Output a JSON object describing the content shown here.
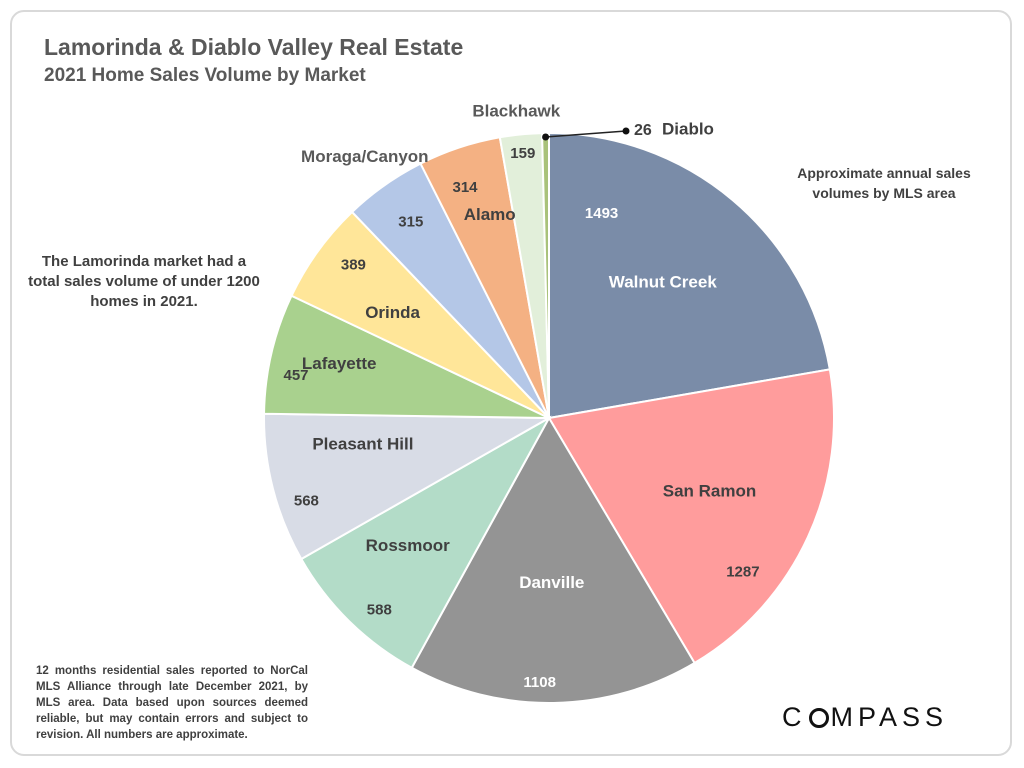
{
  "header": {
    "title": "Lamorinda & Diablo Valley Real Estate",
    "subtitle": "2021 Home Sales Volume by Market"
  },
  "annotations": {
    "left_note": "The Lamorinda market had a total sales volume of under 1200 homes in 2021.",
    "right_note": "Approximate annual sales volumes by MLS area",
    "footnote": "12 months residential sales reported to NorCal MLS Alliance through late December 2021, by MLS area. Data based upon sources deemed reliable, but may contain errors and subject to revision. All numbers are approximate."
  },
  "logo": {
    "text": "COMPASS"
  },
  "chart_data": {
    "type": "pie",
    "title": "Lamorinda & Diablo Valley Real Estate",
    "subtitle": "2021 Home Sales Volume by Market",
    "start": "12 o'clock",
    "direction": "clockwise",
    "slices": [
      {
        "name": "Walnut Creek",
        "value": 1493,
        "color": "#7a8ca8"
      },
      {
        "name": "San Ramon",
        "value": 1287,
        "color": "#ff9c9c"
      },
      {
        "name": "Danville",
        "value": 1108,
        "color": "#949494"
      },
      {
        "name": "Rossmoor",
        "value": 588,
        "color": "#b3dcc8"
      },
      {
        "name": "Pleasant Hill",
        "value": 568,
        "color": "#d8dce6"
      },
      {
        "name": "Lafayette",
        "value": 457,
        "color": "#a9d18e"
      },
      {
        "name": "Orinda",
        "value": 389,
        "color": "#ffe699"
      },
      {
        "name": "Moraga/Canyon",
        "value": 315,
        "color": "#b4c7e7"
      },
      {
        "name": "Alamo",
        "value": 314,
        "color": "#f4b183"
      },
      {
        "name": "Blackhawk",
        "value": 159,
        "color": "#e2efda"
      },
      {
        "name": "Diablo",
        "value": 26,
        "color": "#a9c27a"
      }
    ]
  }
}
